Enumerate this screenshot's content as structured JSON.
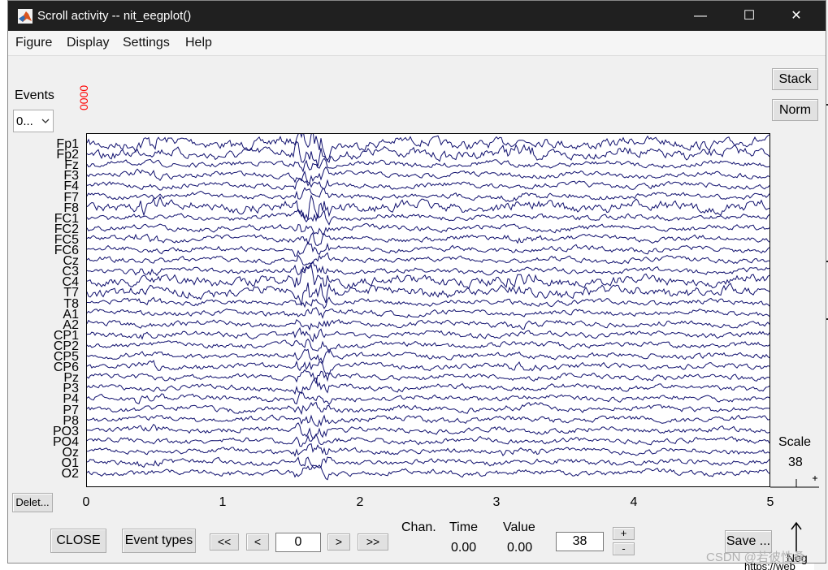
{
  "window": {
    "title": "Scroll activity -- nit_eegplot()",
    "minimize_glyph": "—",
    "maximize_glyph": "☐",
    "close_glyph": "✕"
  },
  "menu": [
    "Figure",
    "Display",
    "Settings",
    "Help"
  ],
  "buttons": {
    "stack": "Stack",
    "norm": "Norm",
    "delete": "Delet...",
    "close": "CLOSE",
    "event_types": "Event types",
    "first": "<<",
    "prev": "<",
    "next": ">",
    "last": ">>",
    "save": "Save ...",
    "plus": "+",
    "minus": "-"
  },
  "events": {
    "label": "Events",
    "select_value": "0...",
    "marker": "0000"
  },
  "channels": [
    "Fp1",
    "Fp2",
    "Fz",
    "F3",
    "F4",
    "F7",
    "F8",
    "FC1",
    "FC2",
    "FC5",
    "FC6",
    "Cz",
    "C3",
    "C4",
    "T7",
    "T8",
    "A1",
    "A2",
    "CP1",
    "CP2",
    "CP5",
    "CP6",
    "Pz",
    "P3",
    "P4",
    "P7",
    "P8",
    "PO3",
    "PO4",
    "Oz",
    "O1",
    "O2"
  ],
  "x_ticks": [
    "0",
    "1",
    "2",
    "3",
    "4",
    "5"
  ],
  "scale": {
    "label": "Scale",
    "value": "38"
  },
  "time_field": "0",
  "scale_field": "38",
  "readout": {
    "chan_label": "Chan.",
    "time_label": "Time",
    "value_label": "Value",
    "time_value": "0.00",
    "value_value": "0.00"
  },
  "neg_label": "Neg",
  "watermark": "CSDN @若彼性桑",
  "background_text": "https://web",
  "colors": {
    "trace": "#10106e",
    "titlebar": "#202020",
    "event_marker": "#ff0000"
  }
}
